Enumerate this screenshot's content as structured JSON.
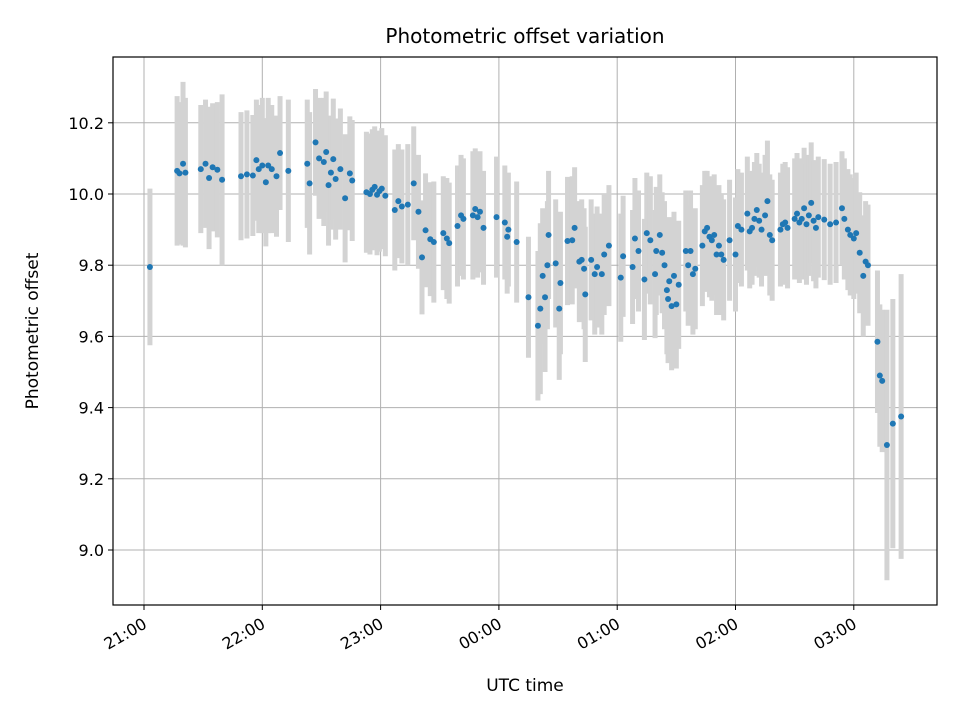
{
  "chart_data": {
    "type": "scatter",
    "title": "Photometric offset variation",
    "xlabel": "UTC time",
    "ylabel": "Photometric offset",
    "x_ticks": [
      "21:00",
      "22:00",
      "23:00",
      "00:00",
      "01:00",
      "02:00",
      "03:00"
    ],
    "y_ticks": [
      "9.0",
      "9.2",
      "9.4",
      "9.6",
      "9.8",
      "10.0",
      "10.2"
    ],
    "xlim": [
      "20:43",
      "03:43"
    ],
    "ylim": [
      8.88,
      10.38
    ],
    "grid": true,
    "x_unit": "hours since 21:00 UTC",
    "points": [
      [
        0.05,
        9.795,
        0.22
      ],
      [
        0.28,
        10.065,
        0.21
      ],
      [
        0.3,
        10.058,
        0.2
      ],
      [
        0.33,
        10.085,
        0.23
      ],
      [
        0.35,
        10.06,
        0.21
      ],
      [
        0.48,
        10.07,
        0.18
      ],
      [
        0.52,
        10.085,
        0.18
      ],
      [
        0.55,
        10.045,
        0.2
      ],
      [
        0.58,
        10.075,
        0.18
      ],
      [
        0.62,
        10.068,
        0.19
      ],
      [
        0.66,
        10.04,
        0.24
      ],
      [
        0.82,
        10.05,
        0.18
      ],
      [
        0.87,
        10.055,
        0.18
      ],
      [
        0.92,
        10.052,
        0.17
      ],
      [
        0.95,
        10.095,
        0.17
      ],
      [
        0.97,
        10.07,
        0.18
      ],
      [
        1.0,
        10.08,
        0.19
      ],
      [
        1.03,
        10.033,
        0.18
      ],
      [
        1.05,
        10.08,
        0.19
      ],
      [
        1.08,
        10.07,
        0.18
      ],
      [
        1.12,
        10.05,
        0.17
      ],
      [
        1.15,
        10.115,
        0.16
      ],
      [
        1.22,
        10.065,
        0.2
      ],
      [
        1.38,
        10.085,
        0.18
      ],
      [
        1.4,
        10.03,
        0.2
      ],
      [
        1.45,
        10.145,
        0.15
      ],
      [
        1.48,
        10.1,
        0.17
      ],
      [
        1.52,
        10.09,
        0.18
      ],
      [
        1.54,
        10.118,
        0.17
      ],
      [
        1.56,
        10.025,
        0.17
      ],
      [
        1.58,
        10.06,
        0.16
      ],
      [
        1.6,
        10.098,
        0.17
      ],
      [
        1.62,
        10.042,
        0.17
      ],
      [
        1.66,
        10.07,
        0.17
      ],
      [
        1.7,
        9.988,
        0.18
      ],
      [
        1.74,
        10.058,
        0.16
      ],
      [
        1.76,
        10.038,
        0.17
      ],
      [
        1.88,
        10.005,
        0.17
      ],
      [
        1.91,
        10.0,
        0.17
      ],
      [
        1.93,
        10.012,
        0.17
      ],
      [
        1.95,
        10.02,
        0.17
      ],
      [
        1.97,
        9.998,
        0.17
      ],
      [
        1.99,
        10.008,
        0.17
      ],
      [
        2.01,
        10.015,
        0.17
      ],
      [
        2.04,
        9.995,
        0.17
      ],
      [
        2.12,
        9.955,
        0.17
      ],
      [
        2.15,
        9.98,
        0.16
      ],
      [
        2.18,
        9.965,
        0.16
      ],
      [
        2.23,
        9.97,
        0.17
      ],
      [
        2.28,
        10.03,
        0.16
      ],
      [
        2.32,
        9.95,
        0.16
      ],
      [
        2.35,
        9.822,
        0.16
      ],
      [
        2.38,
        9.898,
        0.16
      ],
      [
        2.42,
        9.873,
        0.16
      ],
      [
        2.45,
        9.865,
        0.17
      ],
      [
        2.53,
        9.89,
        0.16
      ],
      [
        2.56,
        9.875,
        0.17
      ],
      [
        2.58,
        9.862,
        0.17
      ],
      [
        2.65,
        9.91,
        0.17
      ],
      [
        2.68,
        9.94,
        0.17
      ],
      [
        2.7,
        9.93,
        0.17
      ],
      [
        2.78,
        9.94,
        0.18
      ],
      [
        2.8,
        9.958,
        0.17
      ],
      [
        2.82,
        9.935,
        0.17
      ],
      [
        2.84,
        9.95,
        0.17
      ],
      [
        2.87,
        9.905,
        0.16
      ],
      [
        2.98,
        9.935,
        0.17
      ],
      [
        3.05,
        9.92,
        0.16
      ],
      [
        3.07,
        9.88,
        0.16
      ],
      [
        3.08,
        9.9,
        0.16
      ],
      [
        3.15,
        9.865,
        0.17
      ],
      [
        3.25,
        9.71,
        0.17
      ],
      [
        3.33,
        9.63,
        0.21
      ],
      [
        3.35,
        9.678,
        0.24
      ],
      [
        3.37,
        9.77,
        0.19
      ],
      [
        3.39,
        9.71,
        0.21
      ],
      [
        3.41,
        9.8,
        0.18
      ],
      [
        3.42,
        9.885,
        0.18
      ],
      [
        3.48,
        9.805,
        0.18
      ],
      [
        3.51,
        9.678,
        0.2
      ],
      [
        3.52,
        9.75,
        0.2
      ],
      [
        3.58,
        9.868,
        0.18
      ],
      [
        3.62,
        9.87,
        0.18
      ],
      [
        3.64,
        9.905,
        0.17
      ],
      [
        3.68,
        9.81,
        0.17
      ],
      [
        3.7,
        9.815,
        0.17
      ],
      [
        3.72,
        9.79,
        0.17
      ],
      [
        3.73,
        9.718,
        0.19
      ],
      [
        3.78,
        9.815,
        0.17
      ],
      [
        3.81,
        9.775,
        0.17
      ],
      [
        3.83,
        9.795,
        0.17
      ],
      [
        3.87,
        9.775,
        0.17
      ],
      [
        3.89,
        9.83,
        0.17
      ],
      [
        3.93,
        9.855,
        0.17
      ],
      [
        4.03,
        9.765,
        0.18
      ],
      [
        4.05,
        9.825,
        0.17
      ],
      [
        4.13,
        9.795,
        0.16
      ],
      [
        4.15,
        9.875,
        0.17
      ],
      [
        4.18,
        9.84,
        0.17
      ],
      [
        4.23,
        9.76,
        0.17
      ],
      [
        4.25,
        9.89,
        0.17
      ],
      [
        4.28,
        9.87,
        0.18
      ],
      [
        4.32,
        9.775,
        0.18
      ],
      [
        4.33,
        9.84,
        0.18
      ],
      [
        4.36,
        9.885,
        0.17
      ],
      [
        4.38,
        9.835,
        0.17
      ],
      [
        4.4,
        9.8,
        0.18
      ],
      [
        4.42,
        9.73,
        0.18
      ],
      [
        4.43,
        9.705,
        0.18
      ],
      [
        4.44,
        9.755,
        0.18
      ],
      [
        4.46,
        9.685,
        0.18
      ],
      [
        4.48,
        9.77,
        0.18
      ],
      [
        4.5,
        9.69,
        0.18
      ],
      [
        4.52,
        9.745,
        0.18
      ],
      [
        4.58,
        9.84,
        0.17
      ],
      [
        4.6,
        9.8,
        0.17
      ],
      [
        4.62,
        9.84,
        0.17
      ],
      [
        4.64,
        9.775,
        0.17
      ],
      [
        4.66,
        9.79,
        0.17
      ],
      [
        4.72,
        9.855,
        0.17
      ],
      [
        4.74,
        9.895,
        0.17
      ],
      [
        4.76,
        9.905,
        0.16
      ],
      [
        4.78,
        9.88,
        0.17
      ],
      [
        4.8,
        9.87,
        0.17
      ],
      [
        4.82,
        9.885,
        0.17
      ],
      [
        4.84,
        9.83,
        0.17
      ],
      [
        4.86,
        9.855,
        0.17
      ],
      [
        4.88,
        9.83,
        0.17
      ],
      [
        4.9,
        9.815,
        0.17
      ],
      [
        4.95,
        9.87,
        0.17
      ],
      [
        5.0,
        9.83,
        0.16
      ],
      [
        5.02,
        9.91,
        0.16
      ],
      [
        5.05,
        9.9,
        0.16
      ],
      [
        5.1,
        9.945,
        0.16
      ],
      [
        5.12,
        9.895,
        0.16
      ],
      [
        5.14,
        9.905,
        0.16
      ],
      [
        5.16,
        9.93,
        0.16
      ],
      [
        5.18,
        9.955,
        0.16
      ],
      [
        5.2,
        9.925,
        0.16
      ],
      [
        5.22,
        9.9,
        0.16
      ],
      [
        5.25,
        9.94,
        0.17
      ],
      [
        5.27,
        9.98,
        0.17
      ],
      [
        5.29,
        9.885,
        0.17
      ],
      [
        5.31,
        9.87,
        0.17
      ],
      [
        5.38,
        9.9,
        0.16
      ],
      [
        5.4,
        9.915,
        0.17
      ],
      [
        5.42,
        9.92,
        0.17
      ],
      [
        5.44,
        9.905,
        0.17
      ],
      [
        5.5,
        9.93,
        0.17
      ],
      [
        5.52,
        9.945,
        0.17
      ],
      [
        5.54,
        9.92,
        0.17
      ],
      [
        5.56,
        9.93,
        0.17
      ],
      [
        5.58,
        9.96,
        0.17
      ],
      [
        5.6,
        9.915,
        0.17
      ],
      [
        5.62,
        9.94,
        0.17
      ],
      [
        5.64,
        9.975,
        0.17
      ],
      [
        5.66,
        9.925,
        0.17
      ],
      [
        5.68,
        9.905,
        0.17
      ],
      [
        5.7,
        9.935,
        0.17
      ],
      [
        5.75,
        9.928,
        0.17
      ],
      [
        5.8,
        9.915,
        0.17
      ],
      [
        5.85,
        9.92,
        0.17
      ],
      [
        5.9,
        9.96,
        0.16
      ],
      [
        5.92,
        9.93,
        0.17
      ],
      [
        5.95,
        9.9,
        0.17
      ],
      [
        5.97,
        9.885,
        0.17
      ],
      [
        6.0,
        9.875,
        0.17
      ],
      [
        6.02,
        9.89,
        0.17
      ],
      [
        6.05,
        9.835,
        0.17
      ],
      [
        6.08,
        9.77,
        0.17
      ],
      [
        6.1,
        9.81,
        0.17
      ],
      [
        6.12,
        9.8,
        0.17
      ],
      [
        6.2,
        9.585,
        0.2
      ],
      [
        6.22,
        9.49,
        0.2
      ],
      [
        6.24,
        9.475,
        0.2
      ],
      [
        6.28,
        9.295,
        0.38
      ],
      [
        6.33,
        9.355,
        0.35
      ],
      [
        6.4,
        9.375,
        0.4
      ]
    ]
  }
}
